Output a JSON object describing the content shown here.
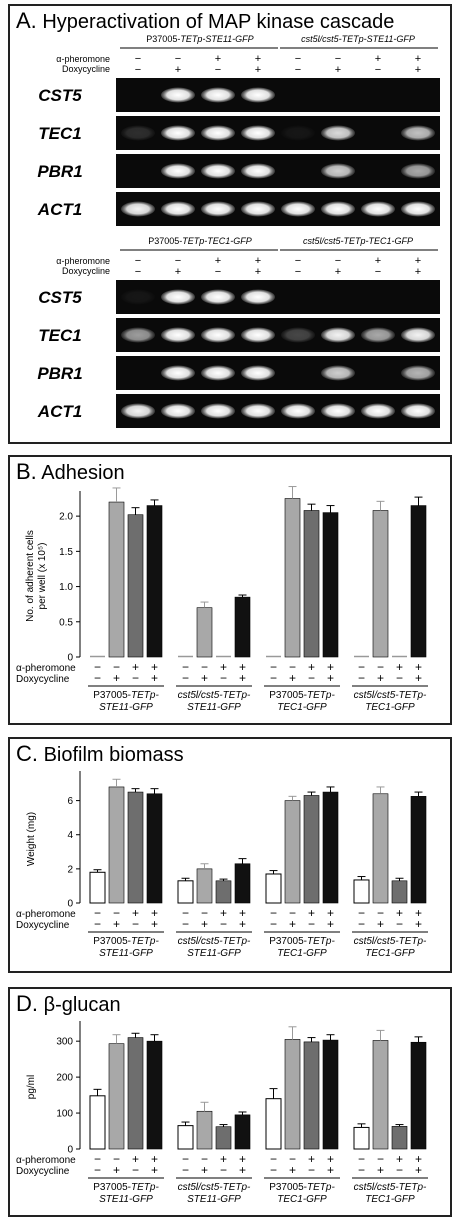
{
  "panelA": {
    "letter": "A.",
    "title": "Hyperactivation of MAP kinase cascade",
    "sections": [
      {
        "strain_left": [
          "P37005-",
          "TETp-STE11-GFP"
        ],
        "strain_right": "cst5l/cst5-TETp-STE11-GFP",
        "genes": [
          "CST5",
          "TEC1",
          "PBR1",
          "ACT1"
        ]
      },
      {
        "strain_left": [
          "P37005-",
          "TETp-TEC1-GFP"
        ],
        "strain_right": "cst5l/cst5-TETp-TEC1-GFP",
        "genes": [
          "CST5",
          "TEC1",
          "PBR1",
          "ACT1"
        ]
      }
    ],
    "row_labels": [
      "α-pheromone",
      "Doxycycline"
    ],
    "pheromone_signs": [
      "−",
      "−",
      "+",
      "+",
      "−",
      "−",
      "+",
      "+"
    ],
    "doxy_signs": [
      "−",
      "+",
      "−",
      "+",
      "−",
      "+",
      "−",
      "+"
    ],
    "gel_bands": [
      [
        0,
        1,
        1,
        1,
        0,
        0,
        0,
        0
      ],
      [
        0.15,
        1,
        1,
        1,
        0.05,
        0.85,
        0,
        0.75
      ],
      [
        0,
        1,
        1,
        1,
        0,
        0.8,
        0,
        0.65
      ],
      [
        0.95,
        1,
        1,
        1,
        1,
        1,
        1,
        1
      ],
      [
        0.05,
        1,
        1,
        1,
        0,
        0,
        0,
        0
      ],
      [
        0.6,
        1,
        1,
        1,
        0.25,
        0.95,
        0.65,
        0.95
      ],
      [
        0,
        1,
        1,
        1,
        0,
        0.8,
        0,
        0.7
      ],
      [
        0.95,
        1,
        1,
        1,
        1,
        1,
        1,
        1
      ]
    ]
  },
  "chart_data": [
    {
      "type": "bar",
      "panel_letter": "B.",
      "title": "Adhesion",
      "ylabel": [
        "No. of adherent cells",
        "per well (x 10⁵)"
      ],
      "ylim": [
        0,
        2.3
      ],
      "yticks": [
        0,
        0.5,
        1.0,
        1.5,
        2.0
      ],
      "ytick_labels": [
        "0",
        "0.5",
        "1.0",
        "1.5",
        "2.0"
      ],
      "row_labels": [
        "α-pheromone",
        "Doxycycline"
      ],
      "groups": [
        {
          "label": [
            "P37005-TETp-",
            "STE11-GFP"
          ],
          "values": [
            0,
            2.2,
            2.02,
            2.15
          ],
          "errors": [
            0,
            0.2,
            0.1,
            0.08
          ]
        },
        {
          "label": [
            "cst5l/cst5-TETp-",
            "STE11-GFP"
          ],
          "values": [
            0,
            0.7,
            0,
            0.85
          ],
          "errors": [
            0,
            0.08,
            0,
            0.03
          ]
        },
        {
          "label": [
            "P37005-TETp-",
            "TEC1-GFP"
          ],
          "values": [
            0,
            2.25,
            2.08,
            2.05
          ],
          "errors": [
            0,
            0.17,
            0.09,
            0.1
          ]
        },
        {
          "label": [
            "cst5l/cst5-TETp-",
            "TEC1-GFP"
          ],
          "values": [
            0,
            2.08,
            0,
            2.15
          ],
          "errors": [
            0,
            0.13,
            0,
            0.12
          ]
        }
      ],
      "bar_colors": [
        "#ffffff",
        "#a8a8a8",
        "#6e6e6e",
        "#111111"
      ],
      "pheromone_signs": [
        "−",
        "−",
        "+",
        "+"
      ],
      "doxy_signs": [
        "−",
        "+",
        "−",
        "+"
      ]
    },
    {
      "type": "bar",
      "panel_letter": "C.",
      "title": "Biofilm biomass",
      "ylabel": [
        "Weight (mg)"
      ],
      "ylim": [
        0,
        7.5
      ],
      "yticks": [
        0,
        2,
        4,
        6
      ],
      "ytick_labels": [
        "0",
        "2",
        "4",
        "6"
      ],
      "row_labels": [
        "α-pheromone",
        "Doxycycline"
      ],
      "groups": [
        {
          "label": [
            "P37005-TETp-",
            "STE11-GFP"
          ],
          "values": [
            1.8,
            6.8,
            6.5,
            6.4
          ],
          "errors": [
            0.15,
            0.45,
            0.2,
            0.3
          ]
        },
        {
          "label": [
            "cst5l/cst5-TETp-",
            "STE11-GFP"
          ],
          "values": [
            1.3,
            2.0,
            1.3,
            2.3
          ],
          "errors": [
            0.15,
            0.3,
            0.1,
            0.3
          ]
        },
        {
          "label": [
            "P37005-TETp-",
            "TEC1-GFP"
          ],
          "values": [
            1.7,
            6.0,
            6.3,
            6.5
          ],
          "errors": [
            0.2,
            0.25,
            0.2,
            0.3
          ]
        },
        {
          "label": [
            "cst5l/cst5-TETp-",
            "TEC1-GFP"
          ],
          "values": [
            1.35,
            6.4,
            1.3,
            6.25
          ],
          "errors": [
            0.2,
            0.4,
            0.15,
            0.25
          ]
        }
      ],
      "bar_colors": [
        "#ffffff",
        "#a8a8a8",
        "#6e6e6e",
        "#111111"
      ],
      "pheromone_signs": [
        "−",
        "−",
        "+",
        "+"
      ],
      "doxy_signs": [
        "−",
        "+",
        "−",
        "+"
      ]
    },
    {
      "type": "bar",
      "panel_letter": "D.",
      "title": "β-glucan",
      "ylabel": [
        "pg/ml"
      ],
      "ylim": [
        0,
        345
      ],
      "yticks": [
        0,
        100,
        200,
        300
      ],
      "ytick_labels": [
        "0",
        "100",
        "200",
        "300"
      ],
      "row_labels": [
        "α-pheromone",
        "Doxycycline"
      ],
      "groups": [
        {
          "label": [
            "P37005-TETp-",
            "STE11-GFP"
          ],
          "values": [
            148,
            293,
            310,
            300
          ],
          "errors": [
            18,
            25,
            12,
            18
          ]
        },
        {
          "label": [
            "cst5l/cst5-TETp-",
            "STE11-GFP"
          ],
          "values": [
            65,
            105,
            62,
            95
          ],
          "errors": [
            10,
            25,
            6,
            8
          ]
        },
        {
          "label": [
            "P37005-TETp-",
            "TEC1-GFP"
          ],
          "values": [
            140,
            305,
            298,
            303
          ],
          "errors": [
            28,
            35,
            12,
            15
          ]
        },
        {
          "label": [
            "cst5l/cst5-TETp-",
            "TEC1-GFP"
          ],
          "values": [
            60,
            302,
            63,
            297
          ],
          "errors": [
            10,
            28,
            5,
            15
          ]
        }
      ],
      "bar_colors": [
        "#ffffff",
        "#a8a8a8",
        "#6e6e6e",
        "#111111"
      ],
      "pheromone_signs": [
        "−",
        "−",
        "+",
        "+"
      ],
      "doxy_signs": [
        "−",
        "+",
        "−",
        "+"
      ]
    }
  ]
}
